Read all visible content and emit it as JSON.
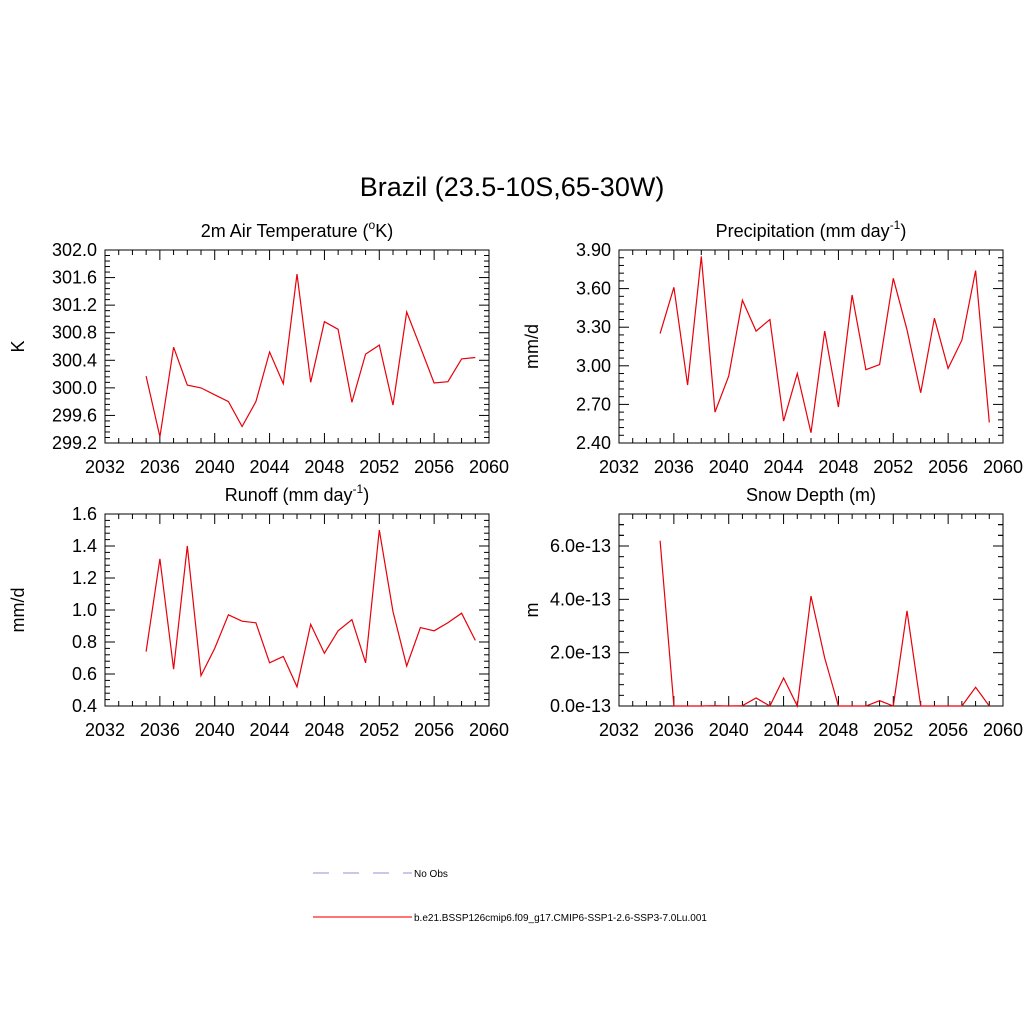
{
  "figure": {
    "title": "Brazil (23.5-10S,65-30W)"
  },
  "legend": {
    "entries": [
      {
        "label": "No Obs",
        "color": "#a8a8e0",
        "dash": true
      },
      {
        "label": "b.e21.BSSP126cmip6.f09_g17.CMIP6-SSP1-2.6-SSP3-7.0Lu.001",
        "color": "#ff2020",
        "dash": false
      }
    ]
  },
  "line_color": "#e8000b",
  "chart_data": [
    {
      "type": "line",
      "title_main": "2m Air Temperature (",
      "title_sup": "o",
      "title_tail": "K)",
      "ylabel": "K",
      "xlim": [
        2032,
        2060
      ],
      "ylim": [
        299.2,
        302.0
      ],
      "xticks": [
        "2032",
        "2036",
        "2040",
        "2044",
        "2048",
        "2052",
        "2056",
        "2060"
      ],
      "yticks": [
        "299.2",
        "299.6",
        "300.0",
        "300.4",
        "300.8",
        "301.2",
        "301.6",
        "302.0"
      ],
      "x": [
        2035,
        2036,
        2037,
        2038,
        2039,
        2040,
        2041,
        2042,
        2043,
        2044,
        2045,
        2046,
        2047,
        2048,
        2049,
        2050,
        2051,
        2052,
        2053,
        2054,
        2055,
        2056,
        2057,
        2058,
        2059
      ],
      "values": [
        300.17,
        299.29,
        300.59,
        300.04,
        300.0,
        299.9,
        299.8,
        299.44,
        299.8,
        300.52,
        300.06,
        301.65,
        300.08,
        300.96,
        300.85,
        299.79,
        300.49,
        300.62,
        299.75,
        301.1,
        300.59,
        300.07,
        300.09,
        300.42,
        300.44
      ]
    },
    {
      "type": "line",
      "title_main": "Precipitation (mm day",
      "title_sup": "-1",
      "title_tail": ")",
      "ylabel": "mm/d",
      "xlim": [
        2032,
        2060
      ],
      "ylim": [
        2.4,
        3.9
      ],
      "xticks": [
        "2032",
        "2036",
        "2040",
        "2044",
        "2048",
        "2052",
        "2056",
        "2060"
      ],
      "yticks": [
        "2.40",
        "2.70",
        "3.00",
        "3.30",
        "3.60",
        "3.90"
      ],
      "x": [
        2035,
        2036,
        2037,
        2038,
        2039,
        2040,
        2041,
        2042,
        2043,
        2044,
        2045,
        2046,
        2047,
        2048,
        2049,
        2050,
        2051,
        2052,
        2053,
        2054,
        2055,
        2056,
        2057,
        2058,
        2059
      ],
      "values": [
        3.25,
        3.61,
        2.85,
        3.85,
        2.64,
        2.92,
        3.51,
        3.27,
        3.36,
        2.57,
        2.94,
        2.48,
        3.27,
        2.68,
        3.55,
        2.97,
        3.01,
        3.68,
        3.28,
        2.79,
        3.37,
        2.98,
        3.2,
        3.74,
        2.56
      ]
    },
    {
      "type": "line",
      "title_main": "Runoff (mm day",
      "title_sup": "-1",
      "title_tail": ")",
      "ylabel": "mm/d",
      "xlim": [
        2032,
        2060
      ],
      "ylim": [
        0.4,
        1.6
      ],
      "xticks": [
        "2032",
        "2036",
        "2040",
        "2044",
        "2048",
        "2052",
        "2056",
        "2060"
      ],
      "yticks": [
        "0.4",
        "0.6",
        "0.8",
        "1.0",
        "1.2",
        "1.4",
        "1.6"
      ],
      "x": [
        2035,
        2036,
        2037,
        2038,
        2039,
        2040,
        2041,
        2042,
        2043,
        2044,
        2045,
        2046,
        2047,
        2048,
        2049,
        2050,
        2051,
        2052,
        2053,
        2054,
        2055,
        2056,
        2057,
        2058,
        2059
      ],
      "values": [
        0.74,
        1.32,
        0.63,
        1.4,
        0.59,
        0.76,
        0.97,
        0.93,
        0.92,
        0.67,
        0.71,
        0.52,
        0.91,
        0.73,
        0.87,
        0.94,
        0.67,
        1.5,
        0.99,
        0.65,
        0.89,
        0.87,
        0.92,
        0.98,
        0.81
      ]
    },
    {
      "type": "line",
      "title_main": "Snow Depth (m)",
      "title_sup": "",
      "title_tail": "",
      "ylabel": "m",
      "xlim": [
        2032,
        2060
      ],
      "ylim": [
        0.0,
        7.2e-13
      ],
      "xticks": [
        "2032",
        "2036",
        "2040",
        "2044",
        "2048",
        "2052",
        "2056",
        "2060"
      ],
      "yticks": [
        "0.0e-13",
        "2.0e-13",
        "4.0e-13",
        "6.0e-13"
      ],
      "ytick_values": [
        0.0,
        2e-13,
        4e-13,
        6e-13
      ],
      "x": [
        2035,
        2036,
        2037,
        2038,
        2039,
        2040,
        2041,
        2042,
        2043,
        2044,
        2045,
        2046,
        2047,
        2048,
        2049,
        2050,
        2051,
        2052,
        2053,
        2054,
        2055,
        2056,
        2057,
        2058,
        2059
      ],
      "values": [
        6.2e-13,
        0,
        0,
        0,
        1e-15,
        0,
        1e-15,
        3e-14,
        0,
        1.05e-13,
        0,
        4.12e-13,
        1.8e-13,
        0,
        0,
        0,
        2e-14,
        0,
        3.57e-13,
        0,
        0,
        0,
        0,
        7e-14,
        0
      ]
    }
  ]
}
